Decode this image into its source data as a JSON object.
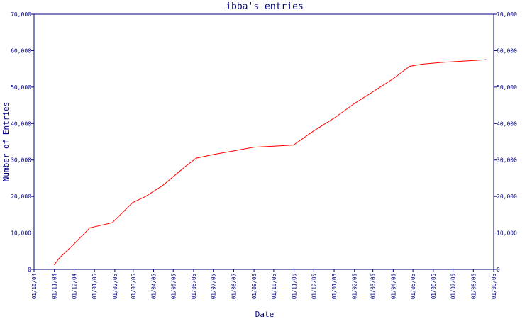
{
  "chart_data": {
    "type": "line",
    "title": "ibba's entries",
    "xlabel": "Date",
    "ylabel": "Number of Entries",
    "x_ticks": [
      "01/10/04",
      "01/11/04",
      "01/12/04",
      "01/01/05",
      "01/02/05",
      "01/03/05",
      "01/04/05",
      "01/05/05",
      "01/06/05",
      "01/07/05",
      "01/08/05",
      "01/09/05",
      "01/10/05",
      "01/11/05",
      "01/12/05",
      "01/01/06",
      "01/02/06",
      "01/03/06",
      "01/04/06",
      "01/05/06",
      "01/06/06",
      "01/07/06",
      "01/08/06",
      "01/09/06"
    ],
    "y_ticks": [
      "0",
      "10,000",
      "20,000",
      "30,000",
      "40,000",
      "50,000",
      "60,000",
      "70,000"
    ],
    "y_tick_values": [
      0,
      10000,
      20000,
      30000,
      40000,
      50000,
      60000,
      70000
    ],
    "ylim": [
      0,
      70000
    ],
    "xlim": [
      "2004-10-01",
      "2006-09-01"
    ],
    "grid": false,
    "legend": "none",
    "series": [
      {
        "color": "#ff0000",
        "points": [
          {
            "x": "2004-11-01",
            "y": 1300
          },
          {
            "x": "2004-11-08",
            "y": 3000
          },
          {
            "x": "2004-12-01",
            "y": 7000
          },
          {
            "x": "2004-12-25",
            "y": 11400
          },
          {
            "x": "2005-01-28",
            "y": 12800
          },
          {
            "x": "2005-02-28",
            "y": 18300
          },
          {
            "x": "2005-03-20",
            "y": 20000
          },
          {
            "x": "2005-04-15",
            "y": 23000
          },
          {
            "x": "2005-05-20",
            "y": 28300
          },
          {
            "x": "2005-06-05",
            "y": 30500
          },
          {
            "x": "2005-07-01",
            "y": 31500
          },
          {
            "x": "2005-08-01",
            "y": 32500
          },
          {
            "x": "2005-08-31",
            "y": 33500
          },
          {
            "x": "2005-10-01",
            "y": 33800
          },
          {
            "x": "2005-10-31",
            "y": 34100
          },
          {
            "x": "2005-12-01",
            "y": 38000
          },
          {
            "x": "2006-01-01",
            "y": 41500
          },
          {
            "x": "2006-02-01",
            "y": 45500
          },
          {
            "x": "2006-03-01",
            "y": 48700
          },
          {
            "x": "2006-04-01",
            "y": 52300
          },
          {
            "x": "2006-04-26",
            "y": 55700
          },
          {
            "x": "2006-05-15",
            "y": 56300
          },
          {
            "x": "2006-06-15",
            "y": 56800
          },
          {
            "x": "2006-07-15",
            "y": 57100
          },
          {
            "x": "2006-08-20",
            "y": 57500
          }
        ]
      }
    ]
  },
  "colors": {
    "axis": "#000080",
    "line": "#ff0000",
    "text": "#000080"
  }
}
